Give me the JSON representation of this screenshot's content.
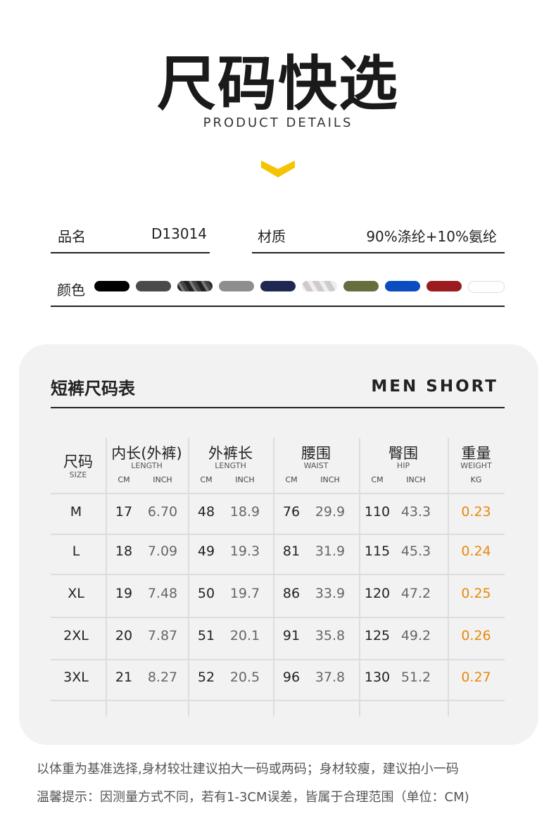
{
  "header": {
    "title": "尺码快选",
    "subtitle": "PRODUCT DETAILS",
    "accent": "#f5c400"
  },
  "info": {
    "name_label": "品名",
    "name_value": "D13014",
    "material_label": "材质",
    "material_value": "90%涤纶+10%氨纶",
    "color_label": "颜色",
    "colors": [
      "#000000",
      "#4a4a4a",
      "camo-dark",
      "#8e8e90",
      "#1f2850",
      "camo-light",
      "#666e3e",
      "#0b4cc0",
      "#9b1b1e",
      "#ffffff"
    ]
  },
  "table": {
    "title": "短裤尺码表",
    "title_en": "MEN SHORT",
    "headers": [
      {
        "cn": "尺码",
        "en": "SIZE"
      },
      {
        "cn": "内长(外裤)",
        "en": "LENGTH",
        "u1": "CM",
        "u2": "INCH"
      },
      {
        "cn": "外裤长",
        "en": "LENGTH",
        "u1": "CM",
        "u2": "INCH"
      },
      {
        "cn": "腰围",
        "en": "WAIST",
        "u1": "CM",
        "u2": "INCH"
      },
      {
        "cn": "臀围",
        "en": "HIP",
        "u1": "CM",
        "u2": "INCH"
      },
      {
        "cn": "重量",
        "en": "WEIGHT",
        "u1": "KG"
      }
    ],
    "rows": [
      [
        "M",
        "17",
        "6.70",
        "48",
        "18.9",
        "76",
        "29.9",
        "110",
        "43.3",
        "0.23"
      ],
      [
        "L",
        "18",
        "7.09",
        "49",
        "19.3",
        "81",
        "31.9",
        "115",
        "45.3",
        "0.24"
      ],
      [
        "XL",
        "19",
        "7.48",
        "50",
        "19.7",
        "86",
        "33.9",
        "120",
        "47.2",
        "0.25"
      ],
      [
        "2XL",
        "20",
        "7.87",
        "51",
        "20.1",
        "91",
        "35.8",
        "125",
        "49.2",
        "0.26"
      ],
      [
        "3XL",
        "21",
        "8.27",
        "52",
        "20.5",
        "96",
        "37.8",
        "130",
        "51.2",
        "0.27"
      ]
    ]
  },
  "notes": [
    "以体重为基准选择,身材较壮建议拍大一码或两码；身材较瘦，建议拍小一码",
    "温馨提示：因测量方式不同，若有1-3CM误差，皆属于合理范围（单位：CM)"
  ]
}
